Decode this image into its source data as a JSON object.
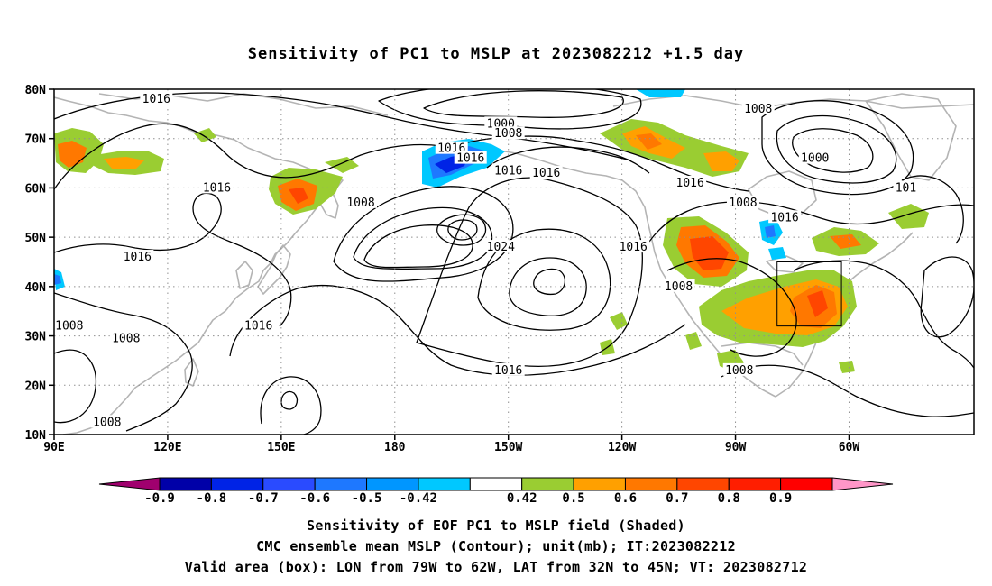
{
  "title": "Sensitivity of PC1 to MSLP at 2023082212 +1.5 day",
  "lat_labels": [
    "80N",
    "70N",
    "60N",
    "50N",
    "40N",
    "30N",
    "20N",
    "10N"
  ],
  "lon_labels": [
    "90E",
    "120E",
    "150E",
    "180",
    "150W",
    "120W",
    "90W",
    "60W"
  ],
  "contour_labels": [
    {
      "text": "1016",
      "lon": 117,
      "lat": 78
    },
    {
      "text": "1000",
      "lon": -152,
      "lat": 73
    },
    {
      "text": "1008",
      "lon": -150,
      "lat": 71
    },
    {
      "text": "1016",
      "lon": -165,
      "lat": 68
    },
    {
      "text": "1016",
      "lon": -160,
      "lat": 66
    },
    {
      "text": "1016",
      "lon": -150,
      "lat": 63.5
    },
    {
      "text": "1016",
      "lon": -140,
      "lat": 63
    },
    {
      "text": "1008",
      "lon": -84,
      "lat": 76
    },
    {
      "text": "1000",
      "lon": -69,
      "lat": 66
    },
    {
      "text": "1016",
      "lon": -102,
      "lat": 61
    },
    {
      "text": "1008",
      "lon": -88,
      "lat": 57
    },
    {
      "text": "101",
      "lon": -45,
      "lat": 60
    },
    {
      "text": "1016",
      "lon": 133,
      "lat": 60
    },
    {
      "text": "1008",
      "lon": 171,
      "lat": 57
    },
    {
      "text": "1016",
      "lon": -77,
      "lat": 54
    },
    {
      "text": "1024",
      "lon": -152,
      "lat": 48
    },
    {
      "text": "1016",
      "lon": -117,
      "lat": 48
    },
    {
      "text": "1016",
      "lon": 112,
      "lat": 46
    },
    {
      "text": "1008",
      "lon": -105,
      "lat": 40
    },
    {
      "text": "1016",
      "lon": 144,
      "lat": 32
    },
    {
      "text": "1008",
      "lon": 94,
      "lat": 32
    },
    {
      "text": "1008",
      "lon": 109,
      "lat": 29.5
    },
    {
      "text": "1016",
      "lon": -150,
      "lat": 23
    },
    {
      "text": "1008",
      "lon": -89,
      "lat": 23
    },
    {
      "text": "1008",
      "lon": 104,
      "lat": 12.5
    }
  ],
  "valid_box": {
    "lon_west": -79,
    "lon_east": -62,
    "lat_south": 32,
    "lat_north": 45
  },
  "colorbar": {
    "colors": [
      "#a0006e",
      "#0000a8",
      "#0023e6",
      "#2a4bff",
      "#1e78ff",
      "#0096ff",
      "#00c8ff",
      "#ffffff",
      "#9acd32",
      "#ffa000",
      "#ff7800",
      "#ff4600",
      "#ff1e00",
      "#ff0000",
      "#ff96c8"
    ],
    "labels": [
      "-0.9",
      "-0.8",
      "-0.7",
      "-0.6",
      "-0.5",
      "-0.42",
      "0.42",
      "0.5",
      "0.6",
      "0.7",
      "0.8",
      "0.9"
    ]
  },
  "captions": [
    "Sensitivity of EOF PC1 to MSLP field (Shaded)",
    "CMC ensemble mean MSLP (Contour); unit(mb); IT:2023082212",
    "Valid area (box): LON from 79W to 62W, LAT from 32N to 45N; VT: 2023082712"
  ]
}
